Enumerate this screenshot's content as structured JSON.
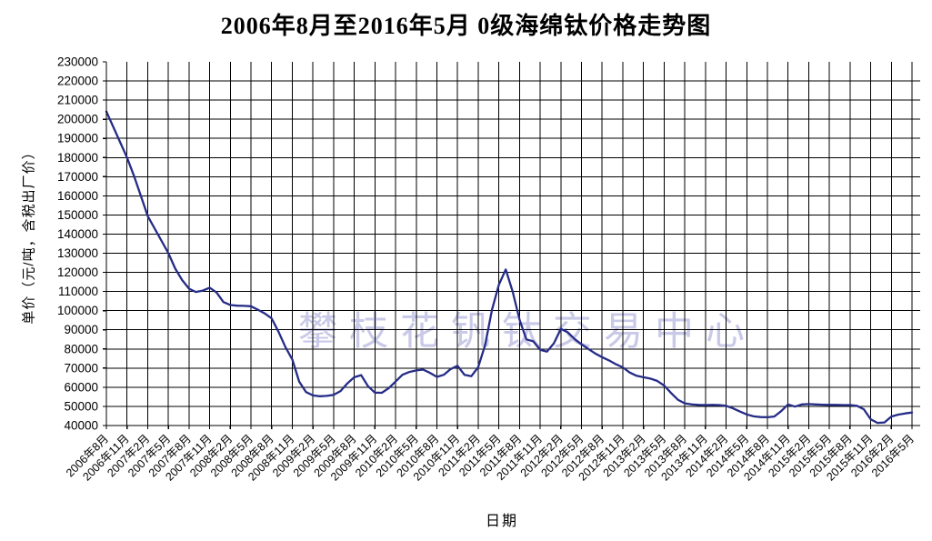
{
  "chart_data": {
    "type": "line",
    "title": "2006年8月至2016年5月 0级海绵钛价格走势图",
    "xlabel": "日期",
    "ylabel": "单价（元/吨，含税出厂价）",
    "watermark": "攀枝花钒钛交易中心",
    "legend": false,
    "grid": true,
    "line_color": "#262c87",
    "watermark_color": "#c9c9e8",
    "ylim": [
      40000,
      230000
    ],
    "ytick_step": 10000,
    "y_tick_labels": [
      "230000",
      "220000",
      "210000",
      "200000",
      "190000",
      "180000",
      "170000",
      "160000",
      "150000",
      "140000",
      "130000",
      "120000",
      "110000",
      "100000",
      "90000",
      "80000",
      "70000",
      "60000",
      "50000",
      "40000"
    ],
    "x_monthly_from": "2006年8月",
    "x_monthly_to": "2016年5月",
    "x_tick_labels": [
      "2006年8月",
      "2006年11月",
      "2007年2月",
      "2007年5月",
      "2007年8月",
      "2007年11月",
      "2008年2月",
      "2008年5月",
      "2008年8月",
      "2008年11月",
      "2009年2月",
      "2009年5月",
      "2009年8月",
      "2009年11月",
      "2010年2月",
      "2010年5月",
      "2010年8月",
      "2010年11月",
      "2011年2月",
      "2011年5月",
      "2011年8月",
      "2011年11月",
      "2012年2月",
      "2012年5月",
      "2012年8月",
      "2012年11月",
      "2013年2月",
      "2013年5月",
      "2013年8月",
      "2013年11月",
      "2014年2月",
      "2014年5月",
      "2014年8月",
      "2014年11月",
      "2015年2月",
      "2015年5月",
      "2015年8月",
      "2015年11月",
      "2016年2月",
      "2016年5月"
    ],
    "values": [
      204000,
      196000,
      188000,
      180000,
      170500,
      160000,
      149500,
      143000,
      136500,
      130000,
      122000,
      116000,
      111500,
      109800,
      110500,
      112000,
      109500,
      104500,
      103000,
      102600,
      102500,
      102300,
      100500,
      98500,
      96000,
      89000,
      81000,
      74500,
      63000,
      57500,
      55700,
      55300,
      55500,
      56000,
      58000,
      62000,
      65200,
      66300,
      60500,
      57200,
      57100,
      59500,
      63000,
      66500,
      68000,
      68800,
      69200,
      67500,
      65400,
      66500,
      69500,
      71200,
      66500,
      65800,
      70500,
      82000,
      100500,
      113500,
      121500,
      110000,
      95300,
      85000,
      84000,
      79500,
      78600,
      83000,
      90500,
      88700,
      85200,
      82400,
      80000,
      77600,
      75700,
      74000,
      72000,
      70400,
      67700,
      66000,
      65200,
      64500,
      63300,
      60900,
      57000,
      53500,
      51600,
      51000,
      50800,
      50700,
      50800,
      50700,
      50300,
      49000,
      47300,
      45800,
      44800,
      44400,
      44300,
      44700,
      47500,
      51000,
      49900,
      51000,
      51200,
      51000,
      50900,
      50800,
      50800,
      50700,
      50700,
      50300,
      48500,
      43300,
      41400,
      41600,
      44700,
      45700,
      46300,
      46800
    ]
  }
}
